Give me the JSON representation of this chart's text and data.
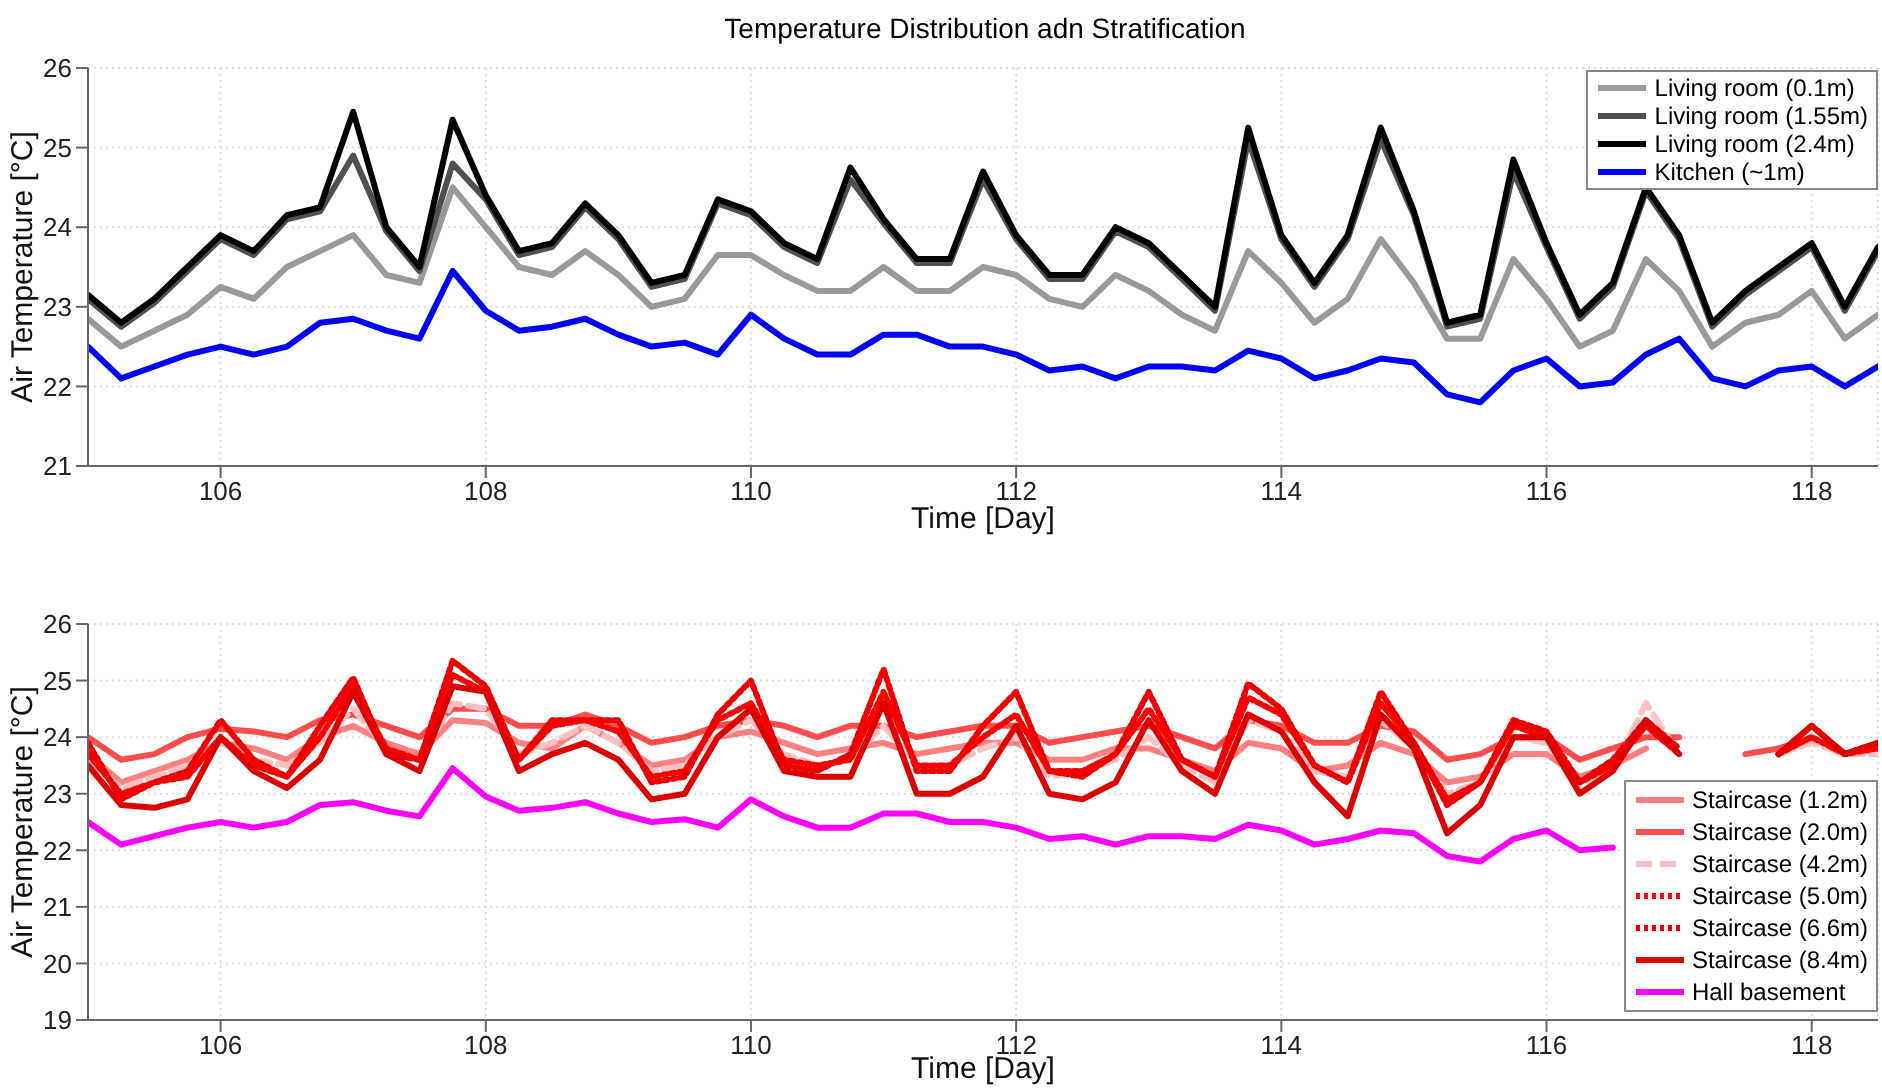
{
  "chart_data": [
    {
      "type": "line",
      "title": "Temperature Distribution adn Stratification",
      "xlabel": "Time [Day]",
      "ylabel": "Air Temperature [°C]",
      "xlim": [
        105,
        118.5
      ],
      "ylim": [
        21,
        26
      ],
      "xticks": [
        106,
        108,
        110,
        112,
        114,
        116,
        118
      ],
      "yticks": [
        21,
        22,
        23,
        24,
        25,
        26
      ],
      "grid": true,
      "legend": "top right",
      "x": [
        105,
        105.25,
        105.5,
        105.75,
        106,
        106.25,
        106.5,
        106.75,
        107,
        107.25,
        107.5,
        107.75,
        108,
        108.25,
        108.5,
        108.75,
        109,
        109.25,
        109.5,
        109.75,
        110,
        110.25,
        110.5,
        110.75,
        111,
        111.25,
        111.5,
        111.75,
        112,
        112.25,
        112.5,
        112.75,
        113,
        113.25,
        113.5,
        113.75,
        114,
        114.25,
        114.5,
        114.75,
        115,
        115.25,
        115.5,
        115.75,
        116,
        116.25,
        116.5,
        116.75,
        117,
        117.25,
        117.5,
        117.75,
        118,
        118.25,
        118.5
      ],
      "series": [
        {
          "name": "Living room (0.1m)",
          "color": "#999999",
          "line_style": "solid",
          "values": [
            22.85,
            22.5,
            22.7,
            22.9,
            23.25,
            23.1,
            23.5,
            23.7,
            23.9,
            23.4,
            23.3,
            24.5,
            24.0,
            23.5,
            23.4,
            23.7,
            23.4,
            23.0,
            23.1,
            23.65,
            23.65,
            23.4,
            23.2,
            23.2,
            23.5,
            23.2,
            23.2,
            23.5,
            23.4,
            23.1,
            23.0,
            23.4,
            23.2,
            22.9,
            22.7,
            23.7,
            23.3,
            22.8,
            23.1,
            23.85,
            23.3,
            22.6,
            22.6,
            23.6,
            23.1,
            22.5,
            22.7,
            23.6,
            23.2,
            22.5,
            22.8,
            22.9,
            23.2,
            22.6,
            22.9
          ]
        },
        {
          "name": "Living room (1.55m)",
          "color": "#505050",
          "line_style": "solid",
          "values": [
            23.1,
            22.75,
            23.05,
            23.45,
            23.85,
            23.65,
            24.1,
            24.2,
            24.9,
            23.95,
            23.45,
            24.8,
            24.35,
            23.65,
            23.75,
            24.25,
            23.85,
            23.25,
            23.35,
            24.3,
            24.15,
            23.75,
            23.55,
            24.6,
            24.05,
            23.55,
            23.55,
            24.6,
            23.85,
            23.35,
            23.35,
            23.95,
            23.75,
            23.35,
            22.95,
            25.1,
            23.85,
            23.25,
            23.85,
            25.1,
            24.15,
            22.75,
            22.85,
            24.7,
            23.75,
            22.85,
            23.25,
            24.45,
            23.85,
            22.75,
            23.15,
            23.45,
            23.75,
            22.95,
            23.7
          ]
        },
        {
          "name": "Living room (2.4m)",
          "color": "#000000",
          "line_style": "solid",
          "values": [
            23.15,
            22.8,
            23.1,
            23.5,
            23.9,
            23.7,
            24.15,
            24.25,
            25.45,
            24.0,
            23.5,
            25.35,
            24.4,
            23.7,
            23.8,
            24.3,
            23.9,
            23.3,
            23.4,
            24.35,
            24.2,
            23.8,
            23.6,
            24.75,
            24.1,
            23.6,
            23.6,
            24.7,
            23.9,
            23.4,
            23.4,
            24.0,
            23.8,
            23.4,
            23.0,
            25.25,
            23.9,
            23.3,
            23.9,
            25.25,
            24.2,
            22.8,
            22.9,
            24.85,
            23.8,
            22.9,
            23.3,
            24.5,
            23.9,
            22.8,
            23.2,
            23.5,
            23.8,
            23.0,
            23.75
          ]
        },
        {
          "name": "Kitchen (~1m)",
          "color": "#0000ff",
          "line_style": "solid",
          "values": [
            22.5,
            22.1,
            22.25,
            22.4,
            22.5,
            22.4,
            22.5,
            22.8,
            22.85,
            22.7,
            22.6,
            23.45,
            22.95,
            22.7,
            22.75,
            22.85,
            22.65,
            22.5,
            22.55,
            22.4,
            22.9,
            22.6,
            22.4,
            22.4,
            22.65,
            22.65,
            22.5,
            22.5,
            22.4,
            22.2,
            22.25,
            22.1,
            22.25,
            22.25,
            22.2,
            22.45,
            22.35,
            22.1,
            22.2,
            22.35,
            22.3,
            21.9,
            21.8,
            22.2,
            22.35,
            22.0,
            22.05,
            22.4,
            22.6,
            22.1,
            22.0,
            22.2,
            22.25,
            22.0,
            22.25
          ]
        }
      ]
    },
    {
      "type": "line",
      "xlabel": "Time [Day]",
      "ylabel": "Air Temperature [°C]",
      "xlim": [
        105,
        118.5
      ],
      "ylim": [
        19,
        26
      ],
      "xticks": [
        106,
        108,
        110,
        112,
        114,
        116,
        118
      ],
      "yticks": [
        19,
        20,
        21,
        22,
        23,
        24,
        25,
        26
      ],
      "grid": true,
      "legend": "bottom right",
      "x": [
        105,
        105.25,
        105.5,
        105.75,
        106,
        106.25,
        106.5,
        106.75,
        107,
        107.25,
        107.5,
        107.75,
        108,
        108.25,
        108.5,
        108.75,
        109,
        109.25,
        109.5,
        109.75,
        110,
        110.25,
        110.5,
        110.75,
        111,
        111.25,
        111.5,
        111.75,
        112,
        112.25,
        112.5,
        112.75,
        113,
        113.25,
        113.5,
        113.75,
        114,
        114.25,
        114.5,
        114.75,
        115,
        115.25,
        115.5,
        115.75,
        116,
        116.25,
        116.5,
        116.75,
        117,
        117.25,
        117.5,
        117.75,
        118,
        118.25,
        118.5
      ],
      "series": [
        {
          "name": "Staircase (1.2m)",
          "color": "#ff8080",
          "line_style": "solid",
          "values": [
            23.7,
            23.2,
            23.4,
            23.6,
            23.9,
            23.8,
            23.6,
            24.0,
            24.2,
            23.9,
            23.7,
            24.3,
            24.25,
            23.9,
            23.8,
            24.2,
            23.9,
            23.5,
            23.6,
            24.0,
            24.1,
            23.9,
            23.7,
            23.8,
            23.9,
            23.7,
            23.8,
            23.9,
            23.9,
            23.6,
            23.6,
            23.8,
            23.8,
            23.6,
            23.4,
            23.9,
            23.8,
            23.4,
            23.5,
            23.9,
            23.7,
            23.2,
            23.3,
            23.7,
            23.7,
            23.3,
            23.5,
            23.8,
            null,
            null,
            null,
            null,
            null,
            null,
            null
          ]
        },
        {
          "name": "Staircase (2.0m)",
          "color": "#ff4d4d",
          "line_style": "solid",
          "values": [
            24.0,
            23.6,
            23.7,
            24.0,
            24.15,
            24.1,
            24.0,
            24.3,
            24.4,
            24.2,
            24.0,
            24.5,
            24.5,
            24.2,
            24.2,
            24.4,
            24.2,
            23.9,
            24.0,
            24.2,
            24.3,
            24.2,
            24.0,
            24.2,
            24.2,
            24.0,
            24.1,
            24.2,
            24.2,
            23.9,
            24.0,
            24.1,
            24.2,
            24.0,
            23.8,
            24.3,
            24.2,
            23.9,
            23.9,
            24.2,
            24.1,
            23.6,
            23.7,
            24.0,
            24.0,
            23.6,
            23.8,
            24.0,
            24.0,
            null,
            23.7,
            23.8,
            24.0,
            23.7,
            23.9
          ]
        },
        {
          "name": "Staircase (4.2m)",
          "color": "#ffc0c0",
          "line_style": "dashed",
          "values": [
            23.6,
            23.1,
            23.3,
            23.5,
            23.9,
            23.6,
            23.5,
            23.9,
            24.5,
            23.8,
            23.6,
            24.6,
            24.5,
            23.7,
            23.9,
            24.2,
            23.9,
            23.4,
            23.5,
            24.0,
            24.3,
            23.7,
            23.5,
            23.6,
            24.2,
            23.5,
            23.5,
            23.8,
            24.0,
            23.3,
            23.4,
            23.6,
            24.0,
            23.5,
            23.2,
            24.3,
            24.1,
            23.4,
            23.3,
            24.3,
            23.8,
            23.0,
            23.2,
            24.0,
            23.9,
            23.2,
            23.4,
            24.6,
            23.7,
            null,
            null,
            23.7,
            23.9,
            23.7,
            23.7
          ]
        },
        {
          "name": "Staircase (5.0m)",
          "color": "#ff0000",
          "line_style": "dotted",
          "values": [
            23.7,
            23.0,
            23.2,
            23.3,
            24.0,
            23.5,
            23.3,
            24.0,
            24.9,
            23.8,
            23.6,
            25.1,
            24.8,
            23.6,
            24.2,
            24.3,
            24.1,
            23.3,
            23.4,
            24.3,
            24.6,
            23.6,
            23.5,
            23.6,
            24.8,
            23.5,
            23.5,
            24.0,
            24.4,
            23.4,
            23.4,
            23.7,
            24.5,
            23.6,
            23.3,
            24.7,
            24.4,
            23.5,
            23.2,
            24.6,
            23.9,
            22.9,
            23.2,
            24.2,
            24.0,
            23.2,
            23.5,
            24.2,
            23.7,
            null,
            null,
            23.7,
            24.0,
            23.7,
            23.8
          ]
        },
        {
          "name": "Staircase (6.6m)",
          "color": "#ee0000",
          "line_style": "dotted",
          "values": [
            23.9,
            22.9,
            23.2,
            23.4,
            24.3,
            23.6,
            23.3,
            24.2,
            25.05,
            23.7,
            23.6,
            25.35,
            24.9,
            23.6,
            24.3,
            24.3,
            24.3,
            23.2,
            23.3,
            24.4,
            25.0,
            23.5,
            23.4,
            23.7,
            25.2,
            23.4,
            23.4,
            24.2,
            24.8,
            23.4,
            23.3,
            23.7,
            24.8,
            23.6,
            23.3,
            24.95,
            24.5,
            23.5,
            23.2,
            24.8,
            23.9,
            22.8,
            23.2,
            24.3,
            24.1,
            23.2,
            23.6,
            24.3,
            23.8,
            null,
            null,
            23.7,
            24.2,
            23.7,
            23.9
          ]
        },
        {
          "name": "Staircase (8.4m)",
          "color": "#dd0000",
          "line_style": "solid",
          "values": [
            23.5,
            22.8,
            22.75,
            22.9,
            24.0,
            23.4,
            23.1,
            23.6,
            24.8,
            23.7,
            23.4,
            24.9,
            24.8,
            23.4,
            23.7,
            23.9,
            23.6,
            22.9,
            23.0,
            24.0,
            24.5,
            23.4,
            23.3,
            23.3,
            24.6,
            23.0,
            23.0,
            23.3,
            24.2,
            23.0,
            22.9,
            23.2,
            24.3,
            23.4,
            23.0,
            24.4,
            24.1,
            23.2,
            22.6,
            24.4,
            23.8,
            22.3,
            22.8,
            24.0,
            24.0,
            23.0,
            23.4,
            24.3,
            23.7,
            null,
            null,
            23.7,
            24.2,
            23.7,
            23.9
          ]
        },
        {
          "name": "Hall basement",
          "color": "#ff00ff",
          "line_style": "solid",
          "values": [
            22.5,
            22.1,
            22.25,
            22.4,
            22.5,
            22.4,
            22.5,
            22.8,
            22.85,
            22.7,
            22.6,
            23.45,
            22.95,
            22.7,
            22.75,
            22.85,
            22.65,
            22.5,
            22.55,
            22.4,
            22.9,
            22.6,
            22.4,
            22.4,
            22.65,
            22.65,
            22.5,
            22.5,
            22.4,
            22.2,
            22.25,
            22.1,
            22.25,
            22.25,
            22.2,
            22.45,
            22.35,
            22.1,
            22.2,
            22.35,
            22.3,
            21.9,
            21.8,
            22.2,
            22.35,
            22.0,
            22.05,
            null,
            null,
            null,
            null,
            null,
            null,
            null,
            null
          ]
        }
      ]
    }
  ]
}
